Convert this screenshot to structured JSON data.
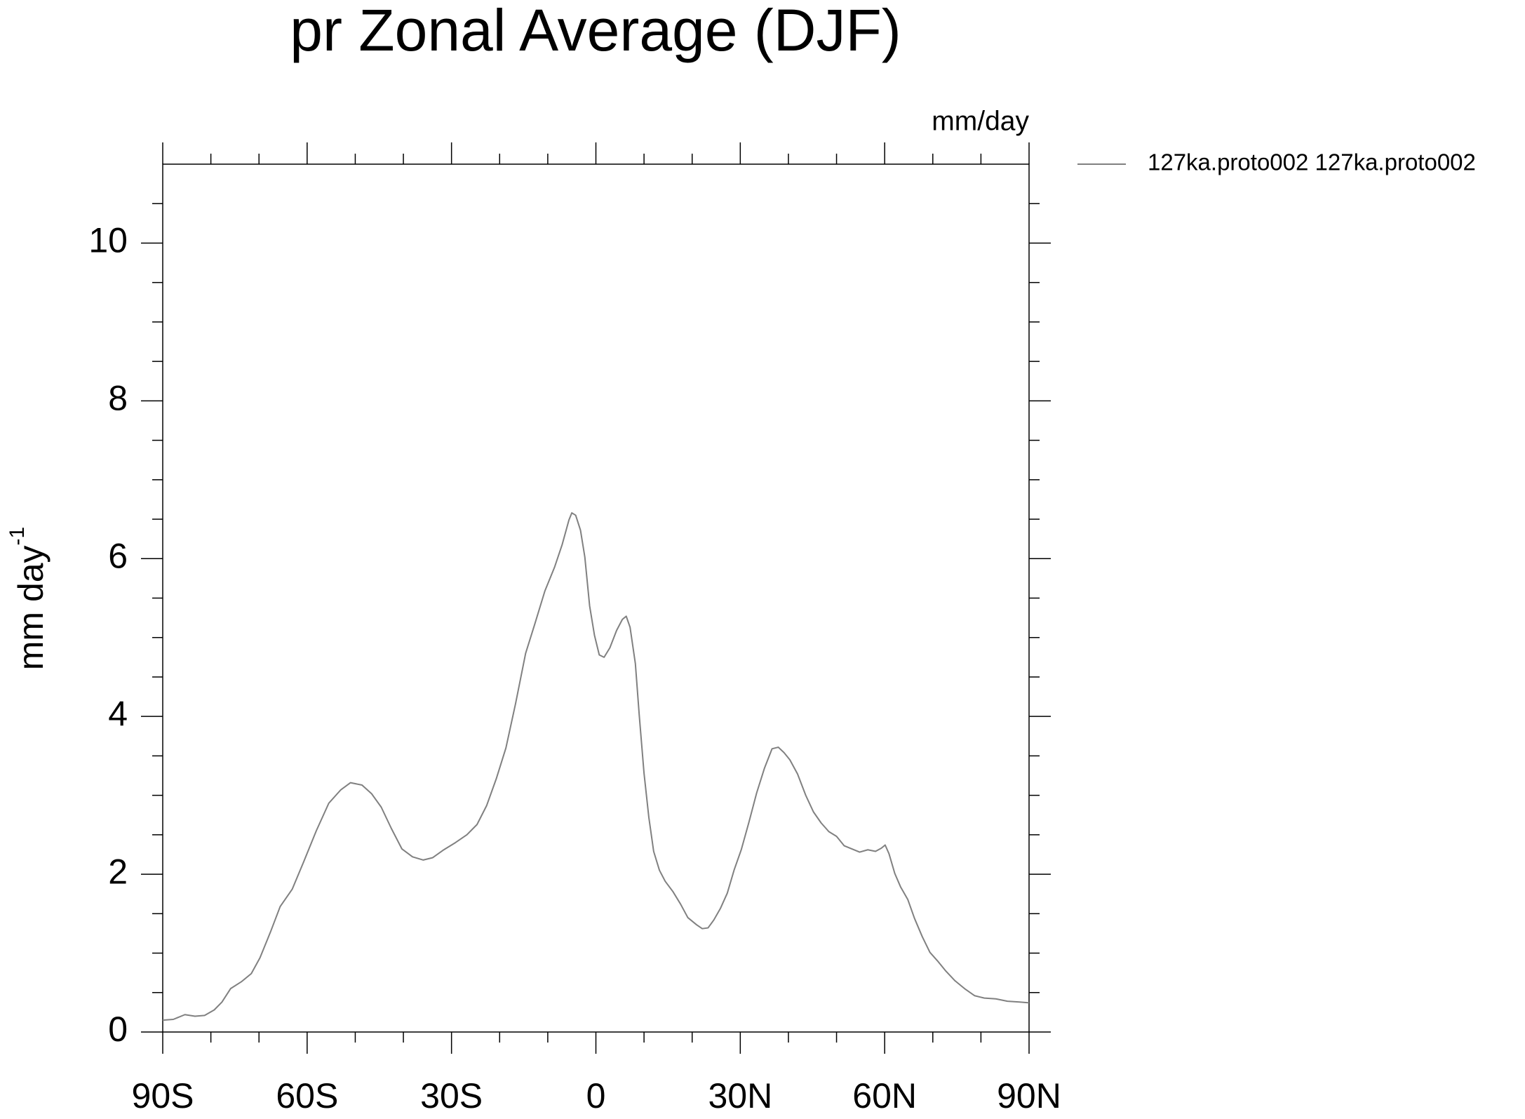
{
  "chart_data": {
    "type": "line",
    "title": "pr Zonal Average (DJF)",
    "units_label": "mm/day",
    "ylabel": "mm day",
    "ylabel_superscript": "-1",
    "xlim": [
      -90,
      90
    ],
    "ylim": [
      0,
      11
    ],
    "xticks": [
      {
        "value": -90,
        "label": "90S"
      },
      {
        "value": -60,
        "label": "60S"
      },
      {
        "value": -30,
        "label": "30S"
      },
      0,
      {
        "value": 30,
        "label": "30N"
      },
      {
        "value": 60,
        "label": "60N"
      },
      {
        "value": 90,
        "label": "90N"
      }
    ],
    "xminorticks": [
      -80,
      -70,
      -50,
      -40,
      -20,
      -10,
      10,
      20,
      40,
      50,
      70,
      80
    ],
    "yticks": [
      0,
      2,
      4,
      6,
      8,
      10
    ],
    "yminorticks": [
      0.5,
      1,
      1.5,
      2.5,
      3,
      3.5,
      4.5,
      5,
      5.5,
      6.5,
      7,
      7.5,
      8.5,
      9,
      9.5,
      10.5
    ],
    "legend": "top-right-outside",
    "series": [
      {
        "name": "127ka.proto002  127ka.proto002",
        "color": "#808080",
        "x": [
          -90,
          -87.8,
          -85.4,
          -83.3,
          -81.3,
          -79.3,
          -77.7,
          -75.9,
          -73.6,
          -71.6,
          -69.8,
          -67.6,
          -65.6,
          -63.1,
          -60.7,
          -58.1,
          -55.5,
          -53.0,
          -51.0,
          -48.6,
          -46.6,
          -44.6,
          -42.5,
          -40.3,
          -38.1,
          -35.9,
          -33.9,
          -31.6,
          -29.2,
          -26.8,
          -24.7,
          -22.7,
          -20.7,
          -18.7,
          -16.7,
          -14.6,
          -12.6,
          -10.6,
          -8.6,
          -7.0,
          -5.6,
          -5.0,
          -4.2,
          -3.2,
          -2.3,
          -1.3,
          -0.3,
          0.7,
          1.7,
          2.9,
          4.3,
          5.5,
          6.3,
          7.1,
          8.2,
          9.0,
          10.0,
          11.0,
          12.0,
          13.2,
          14.4,
          16.0,
          17.6,
          19.1,
          20.9,
          22.1,
          23.3,
          24.5,
          25.9,
          27.3,
          28.7,
          30.2,
          31.8,
          33.4,
          35.0,
          36.6,
          37.9,
          39.1,
          40.3,
          41.9,
          43.6,
          45.2,
          46.8,
          48.4,
          50.0,
          51.6,
          53.2,
          54.8,
          56.5,
          58.1,
          59.3,
          60.1,
          60.9,
          62.1,
          63.3,
          64.8,
          66.2,
          67.8,
          69.4,
          71.0,
          72.6,
          74.6,
          76.6,
          78.7,
          80.7,
          83.1,
          85.5,
          88.0,
          90
        ],
        "values": [
          0.15,
          0.16,
          0.22,
          0.2,
          0.21,
          0.28,
          0.38,
          0.55,
          0.64,
          0.74,
          0.94,
          1.27,
          1.59,
          1.81,
          2.16,
          2.55,
          2.9,
          3.07,
          3.16,
          3.13,
          3.02,
          2.85,
          2.58,
          2.32,
          2.22,
          2.18,
          2.21,
          2.31,
          2.4,
          2.5,
          2.63,
          2.87,
          3.21,
          3.6,
          4.16,
          4.8,
          5.19,
          5.59,
          5.89,
          6.18,
          6.49,
          6.58,
          6.55,
          6.36,
          6.02,
          5.4,
          5.03,
          4.78,
          4.75,
          4.87,
          5.09,
          5.23,
          5.27,
          5.13,
          4.67,
          4.02,
          3.28,
          2.72,
          2.29,
          2.05,
          1.91,
          1.78,
          1.62,
          1.45,
          1.36,
          1.31,
          1.32,
          1.42,
          1.57,
          1.76,
          2.05,
          2.31,
          2.66,
          3.03,
          3.34,
          3.59,
          3.61,
          3.54,
          3.45,
          3.27,
          3.0,
          2.79,
          2.65,
          2.54,
          2.48,
          2.36,
          2.32,
          2.28,
          2.31,
          2.29,
          2.33,
          2.37,
          2.26,
          2.01,
          1.84,
          1.68,
          1.44,
          1.21,
          1.01,
          0.9,
          0.78,
          0.65,
          0.55,
          0.46,
          0.43,
          0.42,
          0.39,
          0.38,
          0.37
        ]
      }
    ]
  }
}
